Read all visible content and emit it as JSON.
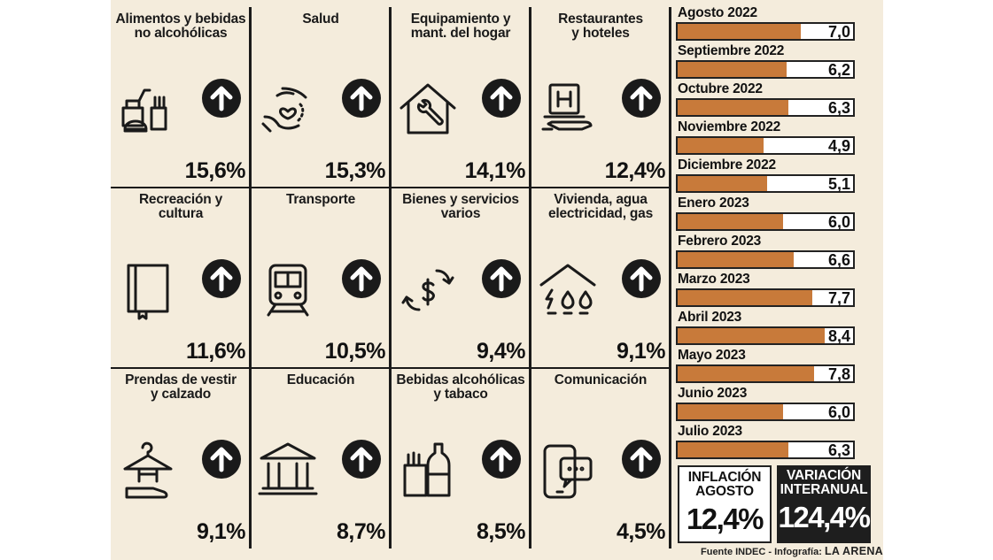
{
  "chart_data": [
    {
      "type": "table",
      "title": "",
      "categories": [
        {
          "label": "Alimentos y bebidas\nno alcohólicas",
          "value": "15,6%",
          "icon": "food-icon",
          "trend": "up"
        },
        {
          "label": "Salud",
          "value": "15,3%",
          "icon": "health-hands-icon",
          "trend": "up"
        },
        {
          "label": "Equipamiento y\nmant. del hogar",
          "value": "14,1%",
          "icon": "house-wrench-icon",
          "trend": "up"
        },
        {
          "label": "Restaurantes\ny hoteles",
          "value": "12,4%",
          "icon": "hotel-icon",
          "trend": "up"
        },
        {
          "label": "Recreación y\ncultura",
          "value": "11,6%",
          "icon": "book-icon",
          "trend": "up"
        },
        {
          "label": "Transporte",
          "value": "10,5%",
          "icon": "train-icon",
          "trend": "up"
        },
        {
          "label": "Bienes y servicios\nvarios",
          "value": "9,4%",
          "icon": "dollar-cycle-icon",
          "trend": "up"
        },
        {
          "label": "Vivienda, agua\nelectricidad, gas",
          "value": "9,1%",
          "icon": "utilities-icon",
          "trend": "up"
        },
        {
          "label": "Prendas de vestir\ny calzado",
          "value": "9,1%",
          "icon": "clothes-icon",
          "trend": "up"
        },
        {
          "label": "Educación",
          "value": "8,7%",
          "icon": "school-icon",
          "trend": "up"
        },
        {
          "label": "Bebidas alcohólicas\ny tabaco",
          "value": "8,5%",
          "icon": "bottle-tobacco-icon",
          "trend": "up"
        },
        {
          "label": "Comunicación",
          "value": "4,5%",
          "icon": "phone-chat-icon",
          "trend": "up"
        }
      ]
    },
    {
      "type": "bar",
      "orientation": "horizontal",
      "title": "",
      "xlim": [
        0,
        10
      ],
      "categories": [
        "Agosto 2022",
        "Septiembre 2022",
        "Octubre 2022",
        "Noviembre 2022",
        "Diciembre 2022",
        "Enero 2023",
        "Febrero 2023",
        "Marzo 2023",
        "Abril 2023",
        "Mayo 2023",
        "Junio 2023",
        "Julio 2023"
      ],
      "values": [
        7.0,
        6.2,
        6.3,
        4.9,
        5.1,
        6.0,
        6.6,
        7.7,
        8.4,
        7.8,
        6.0,
        6.3
      ],
      "value_labels": [
        "7,0",
        "6,2",
        "6,3",
        "4,9",
        "5,1",
        "6,0",
        "6,6",
        "7,7",
        "8,4",
        "7,8",
        "6,0",
        "6,3"
      ]
    }
  ],
  "summary": {
    "inflation": {
      "label": "INFLACIÓN\nAGOSTO",
      "value": "12,4%"
    },
    "annual": {
      "label": "VARIACIÓN\nINTERANUAL",
      "value": "124,4%"
    }
  },
  "source": {
    "text": "Fuente INDEC - Infografía:",
    "brand": "LA ARENA"
  },
  "colors": {
    "background": "#f4ecdc",
    "bar": "#c87a3a",
    "dark": "#1e1e1e"
  }
}
